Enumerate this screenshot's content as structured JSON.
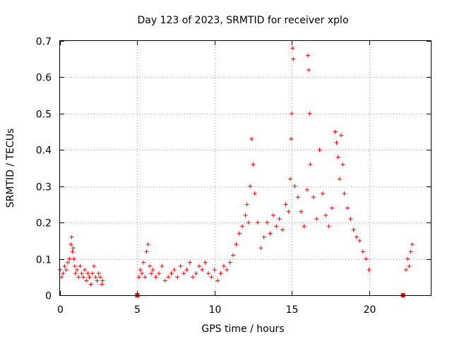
{
  "chart_data": {
    "type": "scatter",
    "title": "Day 123 of 2023, SRMTID for receiver xplo",
    "xlabel": "GPS time / hours",
    "ylabel": "SRMTID / TECUs",
    "xlim": [
      0,
      24
    ],
    "ylim": [
      0,
      0.7
    ],
    "grid": true,
    "marker": "+",
    "color": "#ff0000",
    "xticks": [
      0,
      5,
      10,
      15,
      20
    ],
    "xtick_labels": [
      "0",
      "5",
      "10",
      "15",
      "20"
    ],
    "yticks": [
      0,
      0.1,
      0.2,
      0.3,
      0.4,
      0.5,
      0.6,
      0.7
    ],
    "ytick_labels": [
      "0",
      "0.1",
      "0.2",
      "0.3",
      "0.4",
      "0.5",
      "0.6",
      "0.7"
    ],
    "series": [
      {
        "name": "SRMTID",
        "x": [
          0.0,
          0.1,
          0.2,
          0.3,
          0.4,
          0.5,
          0.6,
          0.7,
          0.75,
          0.8,
          0.85,
          0.9,
          0.95,
          1.0,
          1.1,
          1.2,
          1.3,
          1.4,
          1.5,
          1.6,
          1.7,
          1.8,
          1.9,
          2.0,
          2.1,
          2.2,
          2.3,
          2.4,
          2.5,
          2.6,
          2.7,
          2.75,
          5.1,
          5.2,
          5.3,
          5.4,
          5.5,
          5.6,
          5.7,
          5.8,
          5.9,
          6.0,
          6.2,
          6.4,
          6.6,
          6.8,
          7.0,
          7.2,
          7.4,
          7.6,
          7.8,
          8.0,
          8.2,
          8.4,
          8.6,
          8.8,
          9.0,
          9.2,
          9.4,
          9.6,
          9.8,
          10.0,
          10.2,
          10.4,
          10.6,
          10.8,
          11.0,
          11.2,
          11.4,
          11.6,
          11.8,
          12.0,
          12.1,
          12.2,
          12.3,
          12.4,
          12.5,
          12.6,
          12.8,
          13.0,
          13.2,
          13.4,
          13.6,
          13.8,
          14.0,
          14.2,
          14.4,
          14.6,
          14.8,
          14.9,
          14.95,
          15.0,
          15.05,
          15.1,
          15.2,
          15.4,
          15.6,
          15.8,
          16.0,
          16.05,
          16.1,
          16.15,
          16.2,
          16.4,
          16.6,
          16.8,
          17.0,
          17.2,
          17.4,
          17.6,
          17.8,
          17.9,
          18.0,
          18.1,
          18.2,
          18.3,
          18.4,
          18.6,
          18.8,
          19.0,
          19.2,
          19.4,
          19.6,
          19.8,
          20.0,
          22.4,
          22.5,
          22.6,
          22.7,
          22.8
        ],
        "y": [
          0.07,
          0.05,
          0.06,
          0.08,
          0.07,
          0.09,
          0.1,
          0.14,
          0.16,
          0.12,
          0.13,
          0.1,
          0.08,
          0.06,
          0.07,
          0.05,
          0.08,
          0.06,
          0.05,
          0.07,
          0.04,
          0.06,
          0.05,
          0.03,
          0.06,
          0.08,
          0.05,
          0.04,
          0.06,
          0.05,
          0.03,
          0.04,
          0.05,
          0.07,
          0.06,
          0.09,
          0.05,
          0.12,
          0.14,
          0.08,
          0.06,
          0.07,
          0.05,
          0.06,
          0.08,
          0.04,
          0.05,
          0.06,
          0.07,
          0.05,
          0.08,
          0.06,
          0.07,
          0.09,
          0.05,
          0.06,
          0.08,
          0.07,
          0.09,
          0.06,
          0.05,
          0.07,
          0.04,
          0.06,
          0.08,
          0.07,
          0.09,
          0.11,
          0.14,
          0.17,
          0.19,
          0.22,
          0.25,
          0.2,
          0.3,
          0.43,
          0.36,
          0.28,
          0.2,
          0.13,
          0.16,
          0.2,
          0.17,
          0.22,
          0.19,
          0.21,
          0.18,
          0.25,
          0.23,
          0.32,
          0.43,
          0.5,
          0.68,
          0.65,
          0.3,
          0.27,
          0.23,
          0.19,
          0.29,
          0.66,
          0.62,
          0.5,
          0.36,
          0.27,
          0.21,
          0.4,
          0.28,
          0.22,
          0.19,
          0.24,
          0.45,
          0.42,
          0.38,
          0.32,
          0.44,
          0.36,
          0.28,
          0.24,
          0.21,
          0.18,
          0.16,
          0.15,
          0.12,
          0.1,
          0.07,
          0.07,
          0.1,
          0.08,
          0.12,
          0.14
        ]
      }
    ],
    "baseline_markers": {
      "x": [
        5.0,
        22.2
      ],
      "y": [
        0,
        0
      ]
    }
  }
}
